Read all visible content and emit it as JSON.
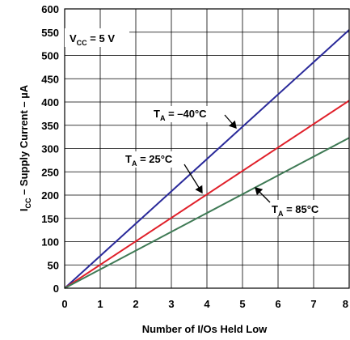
{
  "chart_data": {
    "type": "line",
    "xlabel": "Number of I/Os Held Low",
    "ylabel": {
      "main": "I",
      "sub": "CC",
      "rest": " – Supply Current – µA"
    },
    "xlim": [
      0,
      8
    ],
    "ylim": [
      0,
      600
    ],
    "x_ticks": [
      0,
      1,
      2,
      3,
      4,
      5,
      6,
      7,
      8
    ],
    "y_ticks": [
      0,
      50,
      100,
      150,
      200,
      250,
      300,
      350,
      400,
      450,
      500,
      550,
      600
    ],
    "grid": true,
    "condition": {
      "main": "V",
      "sub": "CC",
      "rest": " = 5 V"
    },
    "series": [
      {
        "label_main": "T",
        "label_sub": "A",
        "label_rest": " = –40°C",
        "color": "#2a2a9a",
        "x": [
          0,
          8
        ],
        "y": [
          0,
          555
        ]
      },
      {
        "label_main": "T",
        "label_sub": "A",
        "label_rest": " = 25°C",
        "color": "#e0202a",
        "x": [
          0,
          8
        ],
        "y": [
          0,
          403
        ]
      },
      {
        "label_main": "T",
        "label_sub": "A",
        "label_rest": " = 85°C",
        "color": "#3f7a55",
        "x": [
          0,
          8
        ],
        "y": [
          0,
          323
        ]
      }
    ]
  }
}
